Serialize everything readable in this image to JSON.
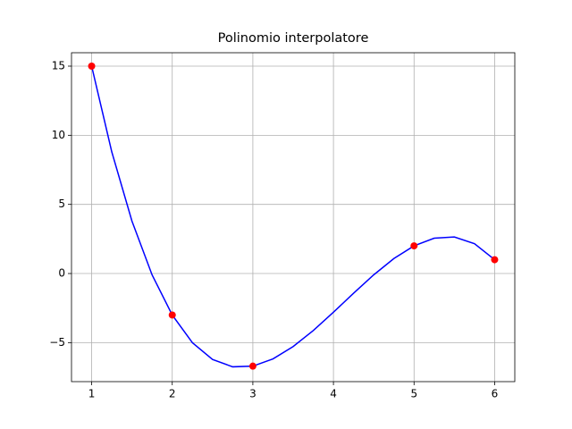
{
  "chart_data": {
    "type": "line",
    "title": "Polinomio interpolatore",
    "xlim": [
      0.75,
      6.25
    ],
    "xticks": [
      1,
      2,
      3,
      4,
      5,
      6
    ],
    "ylim": [
      -7.82,
      15.97
    ],
    "yticks": [
      {
        "value": -5,
        "label": "−5"
      },
      0,
      5,
      10,
      15
    ],
    "grid": true,
    "series": [
      {
        "type": "line",
        "color": "#0000ff",
        "x": [
          1,
          1.25,
          1.5,
          1.75,
          2,
          2.25,
          2.5,
          2.75,
          3,
          3.25,
          3.5,
          3.75,
          4,
          4.25,
          4.5,
          4.75,
          5,
          5.25,
          5.5,
          5.75,
          6
        ],
        "values": [
          15,
          8.793,
          3.794,
          -0.102,
          -3,
          -5.004,
          -6.219,
          -6.749,
          -6.7,
          -6.176,
          -5.281,
          -4.121,
          -2.8,
          -1.423,
          -0.094,
          1.082,
          2,
          2.556,
          2.644,
          2.16,
          1
        ]
      },
      {
        "type": "scatter",
        "color": "#ff0000",
        "x": [
          1,
          2,
          3,
          5,
          6
        ],
        "values": [
          15,
          -3,
          -6.7,
          2,
          1
        ]
      }
    ]
  }
}
